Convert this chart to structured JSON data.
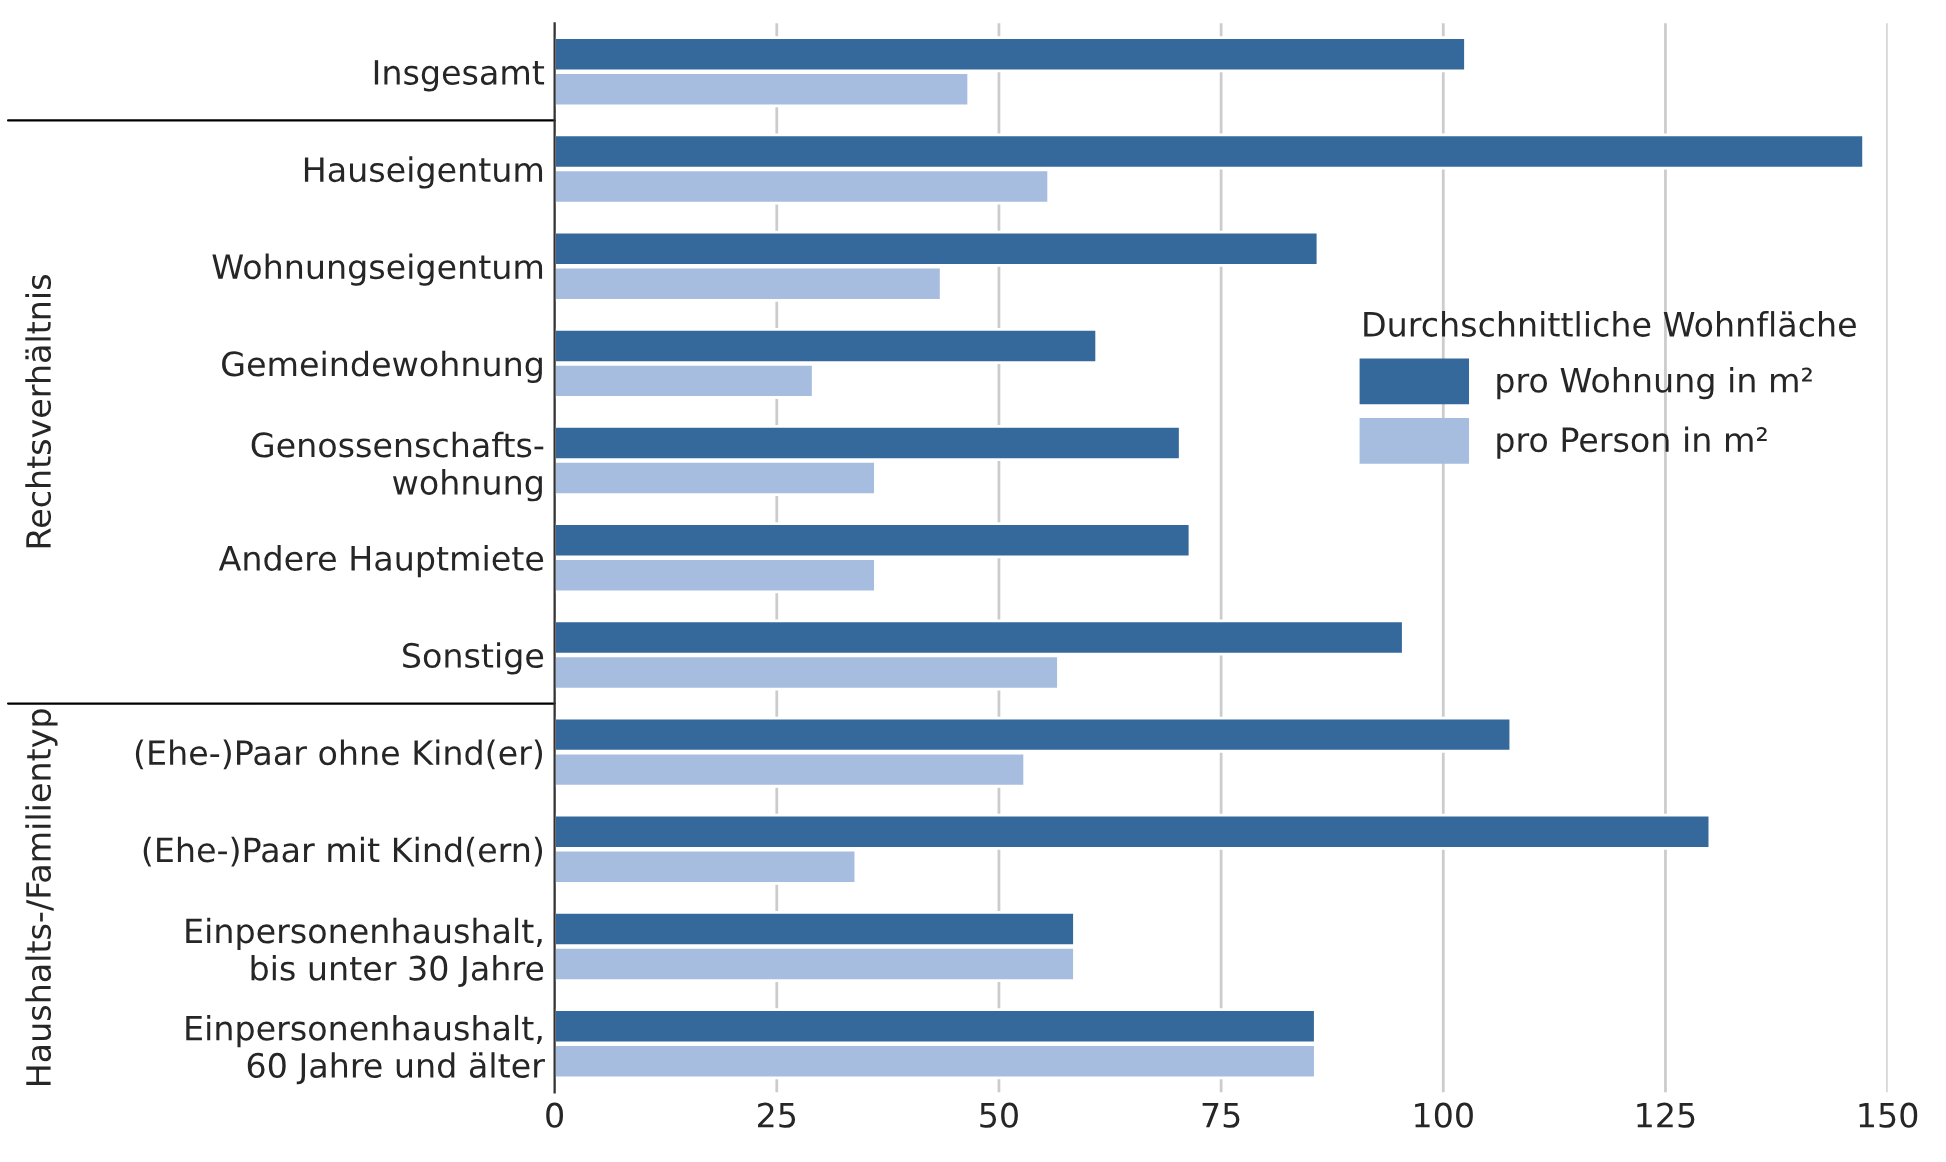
{
  "chart_data": {
    "type": "bar",
    "orientation": "horizontal",
    "legend_title": "Durchschnittliche Wohnfläche",
    "legend": "right",
    "grid": "x",
    "categories": [
      "Insgesamt",
      "Hauseigentum",
      "Wohnungseigentum",
      "Gemeindewohnung",
      "Genossenschafts-\nwohnung",
      "Andere Hauptmiete",
      "Sonstige",
      "(Ehe-)Paar ohne Kind(er)",
      "(Ehe-)Paar mit Kind(ern)",
      "Einpersonenhaushalt,\nbis unter 30 Jahre",
      "Einpersonenhaushalt,\n60 Jahre und älter"
    ],
    "series": [
      {
        "name": "pro Wohnung in m²",
        "color": "#35699b",
        "values": [
          102.5,
          147.3,
          85.9,
          61,
          70.4,
          71.5,
          95.5,
          107.6,
          130,
          58.5,
          85.6
        ]
      },
      {
        "name": "pro Person in m²",
        "color": "#a6bde0",
        "values": [
          46.6,
          55.6,
          43.5,
          29.1,
          36.1,
          36.1,
          56.7,
          52.9,
          33.9,
          58.5,
          85.6
        ]
      }
    ],
    "xlim": [
      0,
      150
    ],
    "xticks": [
      0,
      25,
      50,
      75,
      100,
      125,
      150
    ],
    "annotations": [
      "Rechtsverhältnis",
      "Haushalts-/Familientyp"
    ]
  }
}
